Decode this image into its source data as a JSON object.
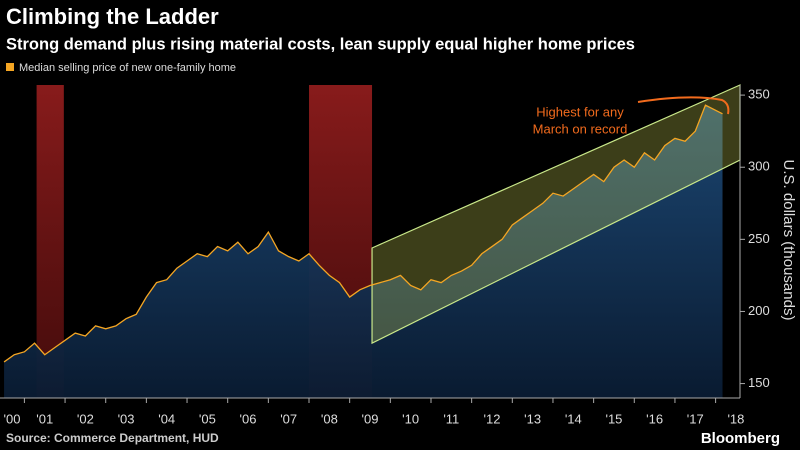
{
  "chart_data": {
    "type": "line",
    "title": "Climbing the Ladder",
    "subtitle": "Strong demand plus rising material costs, lean supply equal higher home prices",
    "y_label": "U.S. dollars (thousands)",
    "source": "Source: Commerce Department, HUD",
    "brand": "Bloomberg",
    "annotation": [
      "Highest for any",
      "March on record"
    ],
    "x": [
      2000.5,
      2000.75,
      2001,
      2001.25,
      2001.5,
      2001.75,
      2002,
      2002.25,
      2002.5,
      2002.75,
      2003,
      2003.25,
      2003.5,
      2003.75,
      2004,
      2004.25,
      2004.5,
      2004.75,
      2005,
      2005.25,
      2005.5,
      2005.75,
      2006,
      2006.25,
      2006.5,
      2006.75,
      2007,
      2007.25,
      2007.5,
      2007.75,
      2008,
      2008.25,
      2008.5,
      2008.75,
      2009,
      2009.25,
      2009.5,
      2009.75,
      2010,
      2010.25,
      2010.5,
      2010.75,
      2011,
      2011.25,
      2011.5,
      2011.75,
      2012,
      2012.25,
      2012.5,
      2012.75,
      2013,
      2013.25,
      2013.5,
      2013.75,
      2014,
      2014.25,
      2014.5,
      2014.75,
      2015,
      2015.25,
      2015.5,
      2015.75,
      2016,
      2016.25,
      2016.5,
      2016.75,
      2017,
      2017.25,
      2017.5,
      2017.75,
      2018.17
    ],
    "series": [
      {
        "name": "Median selling price of new one-family home",
        "color": "#f5a623",
        "values": [
          165,
          170,
          172,
          178,
          170,
          175,
          180,
          185,
          183,
          190,
          188,
          190,
          195,
          198,
          210,
          220,
          222,
          230,
          235,
          240,
          238,
          245,
          242,
          248,
          240,
          245,
          255,
          242,
          238,
          235,
          240,
          232,
          225,
          220,
          210,
          215,
          218,
          220,
          222,
          225,
          218,
          215,
          222,
          220,
          225,
          228,
          232,
          240,
          245,
          250,
          260,
          265,
          270,
          275,
          282,
          280,
          285,
          290,
          295,
          290,
          300,
          305,
          300,
          310,
          305,
          315,
          320,
          318,
          325,
          343,
          337
        ]
      }
    ],
    "recessions": [
      [
        2001.3,
        2001.97
      ],
      [
        2008.0,
        2009.55
      ]
    ],
    "channel": {
      "x": [
        2009.55,
        2018.6
      ],
      "upper": [
        244,
        357
      ],
      "lower": [
        178,
        305
      ]
    },
    "xlim": [
      2000.4,
      2018.6
    ],
    "ylim": [
      140,
      357
    ],
    "yticks": [
      150,
      200,
      250,
      300,
      350
    ],
    "xticks": [
      {
        "value": 2000,
        "label": "'00"
      },
      {
        "value": 2001,
        "label": "'01"
      },
      {
        "value": 2002,
        "label": "'02"
      },
      {
        "value": 2003,
        "label": "'03"
      },
      {
        "value": 2004,
        "label": "'04"
      },
      {
        "value": 2005,
        "label": "'05"
      },
      {
        "value": 2006,
        "label": "'06"
      },
      {
        "value": 2007,
        "label": "'07"
      },
      {
        "value": 2008,
        "label": "'08"
      },
      {
        "value": 2009,
        "label": "'09"
      },
      {
        "value": 2010,
        "label": "'10"
      },
      {
        "value": 2011,
        "label": "'11"
      },
      {
        "value": 2012,
        "label": "'12"
      },
      {
        "value": 2013,
        "label": "'13"
      },
      {
        "value": 2014,
        "label": "'14"
      },
      {
        "value": 2015,
        "label": "'15"
      },
      {
        "value": 2016,
        "label": "'16"
      },
      {
        "value": 2017,
        "label": "'17"
      },
      {
        "value": 2018,
        "label": "'18"
      }
    ]
  }
}
